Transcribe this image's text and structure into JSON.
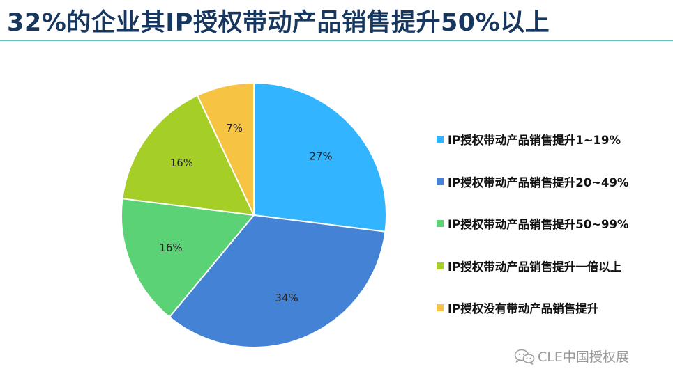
{
  "page": {
    "title": "32%的企业其IP授权带动产品销售提升50%以上"
  },
  "watermark": {
    "text": "CLE中国授权展",
    "icon": "wechat-icon"
  },
  "chart_data": {
    "type": "pie",
    "slices": [
      {
        "name": "IP授权带动产品销售提升1~19%",
        "value": 27,
        "label": "27%",
        "color": "#33B4FF"
      },
      {
        "name": "IP授权带动产品销售提升20~49%",
        "value": 34,
        "label": "34%",
        "color": "#4482D6"
      },
      {
        "name": "IP授权带动产品销售提升50~99%",
        "value": 16,
        "label": "16%",
        "color": "#5CD276"
      },
      {
        "name": "IP授权带动产品销售提升一倍以上",
        "value": 16,
        "label": "16%",
        "color": "#A5CF26"
      },
      {
        "name": "IP授权没有带动产品销售提升",
        "value": 7,
        "label": "7%",
        "color": "#F6C342"
      }
    ],
    "start_angle_deg": 0,
    "direction": "clockwise",
    "legend_position": "right"
  }
}
